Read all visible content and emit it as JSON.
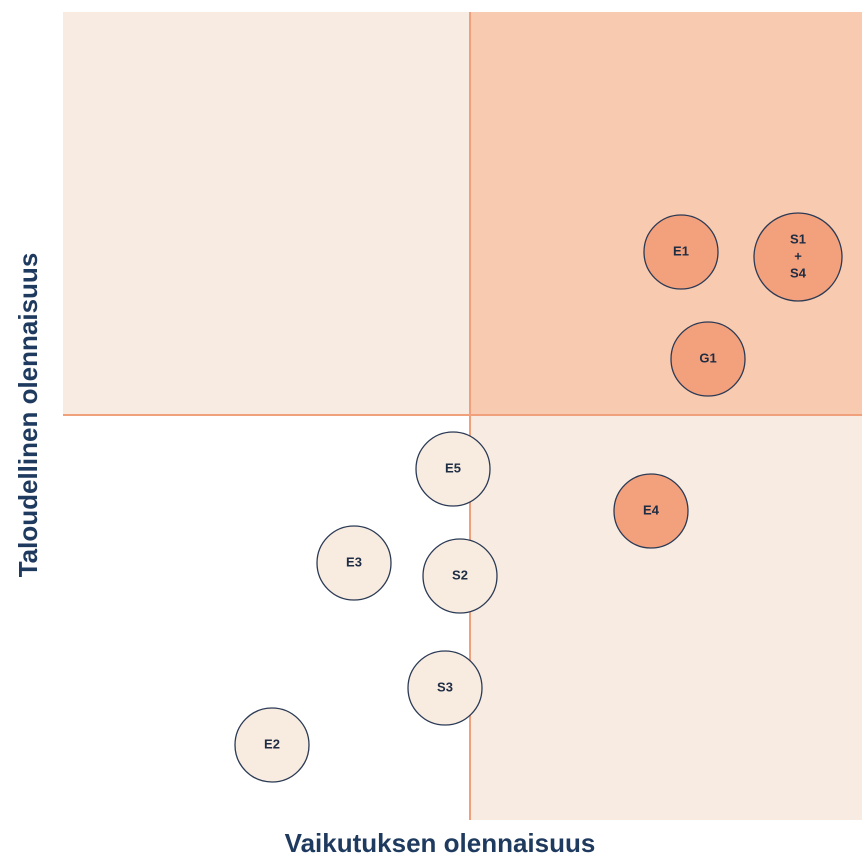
{
  "x_axis_label": "Vaikutuksen olennaisuus",
  "y_axis_label": "Taloudellinen olennaisuus",
  "nodes": [
    {
      "label_lines": [
        "E1"
      ],
      "color": "#f3a07c"
    },
    {
      "label_lines": [
        "S1",
        "+",
        "S4"
      ],
      "color": "#f3a07c"
    },
    {
      "label_lines": [
        "G1"
      ],
      "color": "#f3a07c"
    },
    {
      "label_lines": [
        "E5"
      ],
      "color": "#f8ece1"
    },
    {
      "label_lines": [
        "E4"
      ],
      "color": "#f3a07c"
    },
    {
      "label_lines": [
        "E3"
      ],
      "color": "#f8ece1"
    },
    {
      "label_lines": [
        "S2"
      ],
      "color": "#f8ece1"
    },
    {
      "label_lines": [
        "S3"
      ],
      "color": "#f8ece1"
    },
    {
      "label_lines": [
        "E2"
      ],
      "color": "#f8ece1"
    }
  ]
}
